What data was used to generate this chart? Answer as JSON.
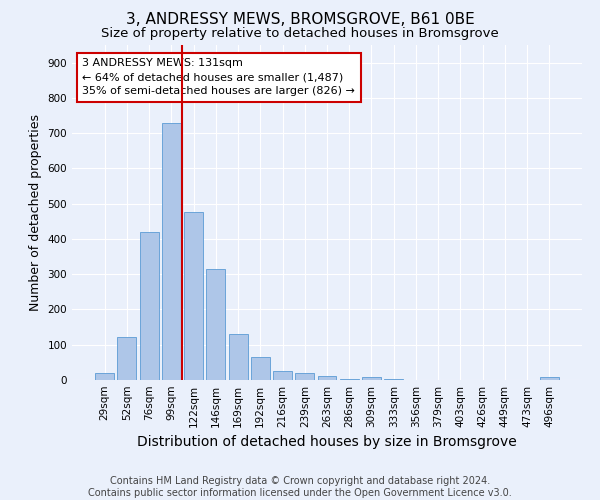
{
  "title": "3, ANDRESSY MEWS, BROMSGROVE, B61 0BE",
  "subtitle": "Size of property relative to detached houses in Bromsgrove",
  "xlabel": "Distribution of detached houses by size in Bromsgrove",
  "ylabel": "Number of detached properties",
  "footer_line1": "Contains HM Land Registry data © Crown copyright and database right 2024.",
  "footer_line2": "Contains public sector information licensed under the Open Government Licence v3.0.",
  "annotation_line1": "3 ANDRESSY MEWS: 131sqm",
  "annotation_line2": "← 64% of detached houses are smaller (1,487)",
  "annotation_line3": "35% of semi-detached houses are larger (826) →",
  "bar_categories": [
    "29sqm",
    "52sqm",
    "76sqm",
    "99sqm",
    "122sqm",
    "146sqm",
    "169sqm",
    "192sqm",
    "216sqm",
    "239sqm",
    "263sqm",
    "286sqm",
    "309sqm",
    "333sqm",
    "356sqm",
    "379sqm",
    "403sqm",
    "426sqm",
    "449sqm",
    "473sqm",
    "496sqm"
  ],
  "bar_values": [
    20,
    122,
    420,
    730,
    477,
    315,
    130,
    65,
    25,
    20,
    10,
    3,
    8,
    2,
    0,
    0,
    0,
    0,
    0,
    0,
    8
  ],
  "bar_color": "#aec6e8",
  "bar_edge_color": "#5b9bd5",
  "vline_x": 3.5,
  "vline_color": "#cc0000",
  "background_color": "#eaf0fb",
  "grid_color": "#ffffff",
  "ylim": [
    0,
    950
  ],
  "yticks": [
    0,
    100,
    200,
    300,
    400,
    500,
    600,
    700,
    800,
    900
  ],
  "annotation_box_color": "#cc0000",
  "title_fontsize": 11,
  "subtitle_fontsize": 9.5,
  "xlabel_fontsize": 10,
  "ylabel_fontsize": 9,
  "tick_fontsize": 7.5,
  "annotation_fontsize": 8,
  "footer_fontsize": 7
}
